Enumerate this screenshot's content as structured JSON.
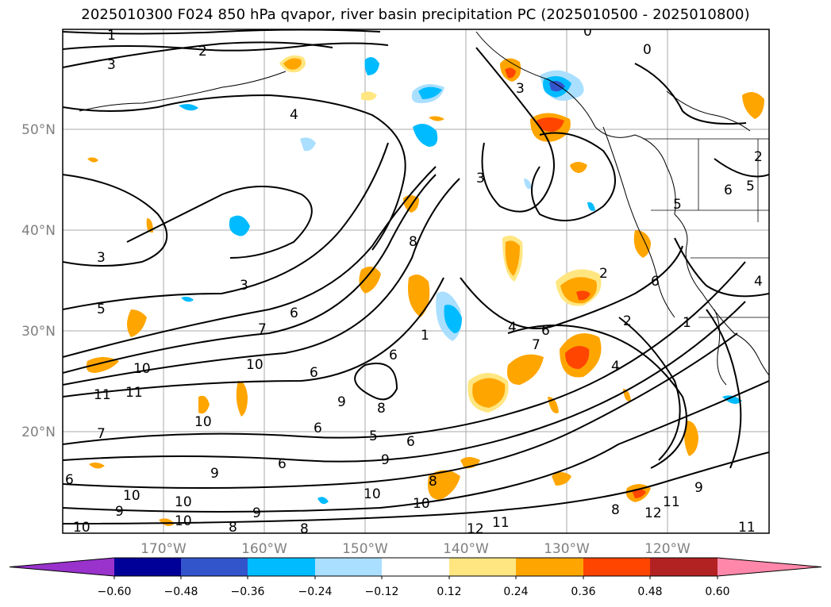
{
  "title": "2025010300 F024 850 hPa qvapor, river basin precipitation PC (2025010500 - 2025010800)",
  "map": {
    "lat_labels": [
      "50°N",
      "40°N",
      "30°N",
      "20°N"
    ],
    "lon_labels": [
      "170°W",
      "160°W",
      "150°W",
      "140°W",
      "130°W",
      "120°W"
    ],
    "contour_labels": [
      "1",
      "0",
      "3",
      "2",
      "0",
      "4",
      "3",
      "3",
      "2",
      "6",
      "5",
      "3",
      "8",
      "5",
      "6",
      "7",
      "6",
      "10",
      "10",
      "11",
      "11",
      "7",
      "6",
      "10",
      "6",
      "9",
      "8",
      "6",
      "5",
      "9",
      "8",
      "6",
      "9",
      "10",
      "10",
      "9",
      "10",
      "10",
      "8",
      "9",
      "8",
      "6",
      "10",
      "12",
      "11",
      "10",
      "8",
      "12",
      "11",
      "11",
      "9",
      "3",
      "6",
      "7",
      "4",
      "2",
      "1",
      "1",
      "4",
      "2",
      "6",
      "5",
      "4"
    ]
  },
  "colorbar": {
    "colors": [
      "#9933cc",
      "#000099",
      "#3355cc",
      "#00bbff",
      "#aadfff",
      "#ffffff",
      "#ffe680",
      "#ffa500",
      "#ff4500",
      "#b22222",
      "#ff88aa"
    ],
    "tick_labels": [
      "−0.60",
      "−0.48",
      "−0.36",
      "−0.24",
      "−0.12",
      "0.12",
      "0.24",
      "0.36",
      "0.48",
      "0.60"
    ]
  }
}
